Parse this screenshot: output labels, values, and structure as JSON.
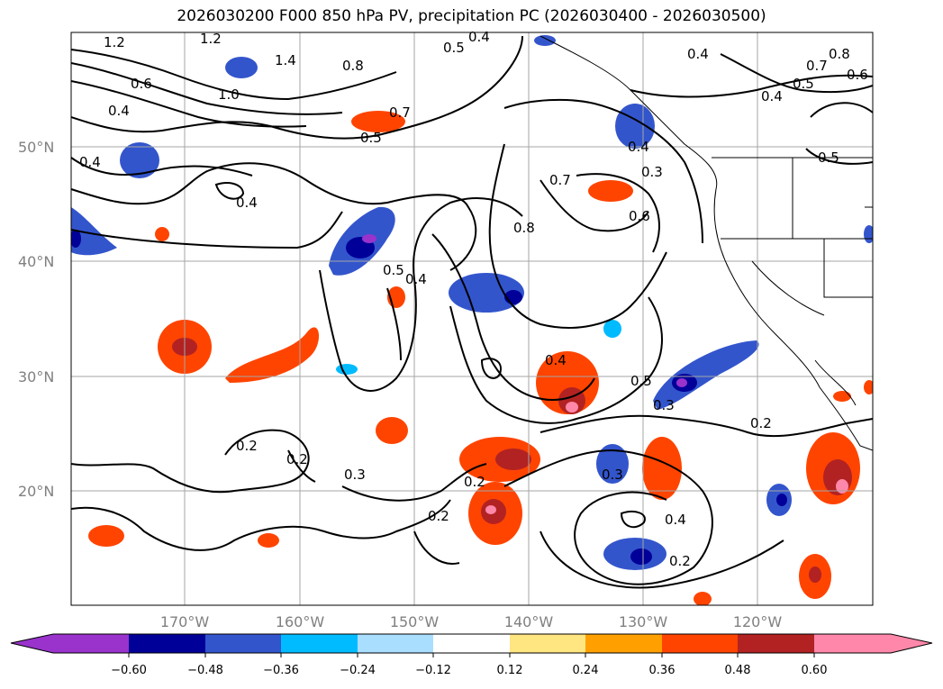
{
  "title": "2026030200 F000 850 hPa PV, precipitation PC (2026030400 - 2026030500)",
  "lat_labels": [
    "50°N",
    "40°N",
    "30°N",
    "20°N"
  ],
  "lon_labels": [
    "170°W",
    "160°W",
    "150°W",
    "140°W",
    "130°W",
    "120°W"
  ],
  "colorbar": {
    "tick_labels": [
      "−0.60",
      "−0.48",
      "−0.36",
      "−0.24",
      "−0.12",
      "0.12",
      "0.24",
      "0.36",
      "0.48",
      "0.60"
    ],
    "colors": [
      "#9933cc",
      "#000099",
      "#3355cc",
      "#00bbff",
      "#aadeff",
      "#ffffff",
      "#ffe680",
      "#ffa000",
      "#ff4400",
      "#b22222",
      "#ff88aa"
    ]
  },
  "contour_labels": [
    "1.2",
    "1.2",
    "1.4",
    "0.8",
    "1.0",
    "0.6",
    "0.4",
    "0.5",
    "0.4",
    "0.4",
    "0.5",
    "0.4",
    "0.8",
    "0.7",
    "0.6",
    "0.4",
    "0.5",
    "0.7",
    "0.5",
    "0.4",
    "0.7",
    "0.3",
    "0.6",
    "0.8",
    "0.4",
    "0.5",
    "0.4",
    "0.4",
    "0.5",
    "0.3",
    "0.2",
    "0.2",
    "0.2",
    "0.3",
    "0.2",
    "0.2",
    "0.3",
    "0.4",
    "0.2"
  ]
}
